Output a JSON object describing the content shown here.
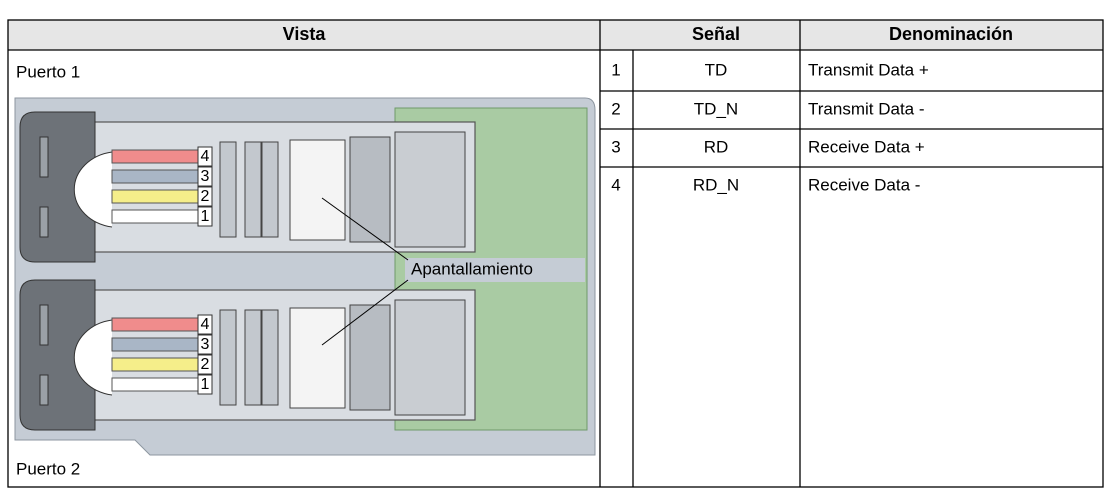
{
  "header": {
    "columns": [
      "Vista",
      "Señal",
      "Denominación"
    ]
  },
  "view": {
    "port_top": "Puerto 1",
    "port_bottom": "Puerto 2",
    "shield_label": "Apantallamiento",
    "wire_labels": [
      4,
      3,
      2,
      1
    ]
  },
  "table": {
    "rows": [
      [
        1,
        "TD",
        "Transmit Data +"
      ],
      [
        2,
        "TD_N",
        "Transmit Data -"
      ],
      [
        3,
        "RD",
        "Receive Data +"
      ],
      [
        4,
        "RD_N",
        "Receive Data -"
      ]
    ]
  }
}
